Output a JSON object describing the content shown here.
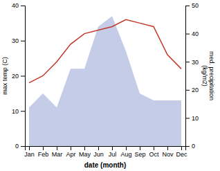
{
  "chart_data": {
    "type": "line",
    "xlabel": "date (month)",
    "ylabel": "max temp (C)",
    "y2label": "med. precipitation\n(kg/m2)",
    "categories": [
      "Jan",
      "Feb",
      "Mar",
      "Apr",
      "May",
      "Jun",
      "Jul",
      "Aug",
      "Sep",
      "Oct",
      "Nov",
      "Dec"
    ],
    "series": [
      {
        "type": "area",
        "color": "#c5cce8",
        "values": [
          11,
          15,
          11,
          22,
          22,
          34,
          37,
          27,
          15,
          13,
          13,
          13
        ]
      },
      {
        "type": "line",
        "color": "#c0392b",
        "values": [
          18,
          20,
          24,
          29,
          32,
          33,
          34,
          36,
          35,
          34,
          26,
          22
        ]
      }
    ],
    "ylim": [
      0,
      40
    ],
    "yticks": [
      0,
      10,
      20,
      30,
      40
    ],
    "y2lim": [
      0,
      50
    ],
    "y2ticks": [
      0,
      10,
      20,
      30,
      40,
      50
    ]
  }
}
